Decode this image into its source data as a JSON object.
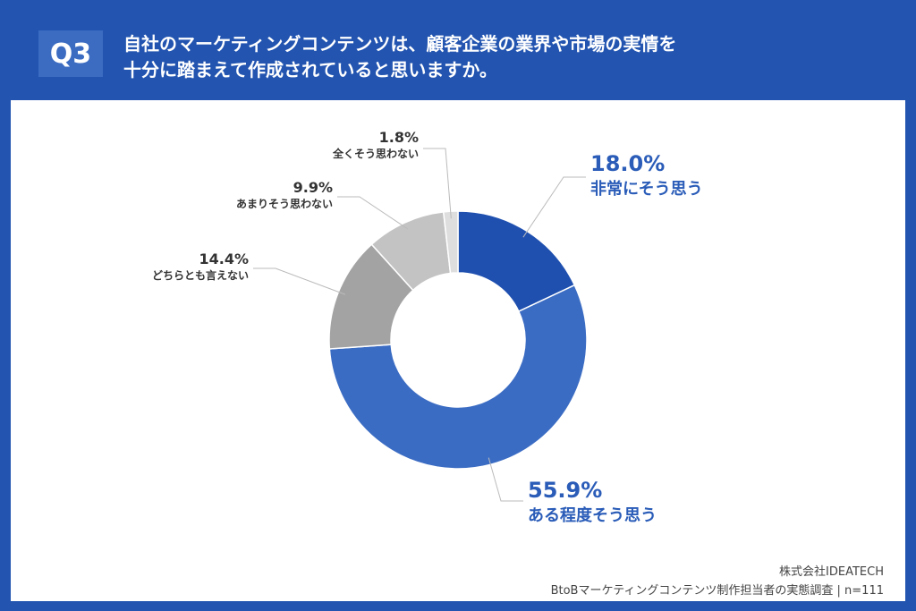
{
  "header": {
    "question_no": "Q3",
    "title_line1": "自社のマーケティングコンテンツは、顧客企業の業界や市場の実情を",
    "title_line2": "十分に踏まえて作成されていると思いますか。"
  },
  "chart_data": {
    "type": "pie",
    "donut": true,
    "categories": [
      "非常にそう思う",
      "ある程度そう思う",
      "どちらとも言えない",
      "あまりそう思わない",
      "全くそう思わない"
    ],
    "values": [
      18.0,
      55.9,
      14.4,
      9.9,
      1.8
    ],
    "labels": [
      "18.0%",
      "55.9%",
      "14.4%",
      "9.9%",
      "1.8%"
    ],
    "colors": [
      "#1f50b0",
      "#3b6cc3",
      "#a3a3a3",
      "#c3c3c3",
      "#dedede"
    ],
    "start": "top",
    "direction": "clockwise"
  },
  "footer": {
    "company": "株式会社IDEATECH",
    "survey": "BtoBマーケティングコンテンツ制作担当者の実態調査 | n=111"
  }
}
